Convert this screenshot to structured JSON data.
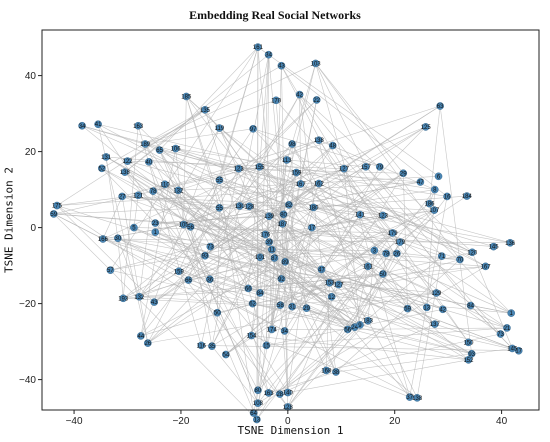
{
  "chart_data": {
    "type": "scatter",
    "title": "Embedding Real Social Networks",
    "xlabel": "TSNE Dimension 1",
    "ylabel": "TSNE Dimension 2",
    "xlim": [
      -46,
      47
    ],
    "ylim": [
      -48,
      52
    ],
    "xticks": [
      -40,
      -20,
      0,
      20,
      40
    ],
    "yticks": [
      -40,
      -20,
      0,
      20,
      40
    ],
    "grid": false,
    "node_color": "#4a86b4",
    "edge_color": "#b3b3b3",
    "nodes": [
      {
        "label": "161",
        "x": -5.6,
        "y": 47.5
      },
      {
        "label": "34",
        "x": -3.6,
        "y": 45.5
      },
      {
        "label": "43",
        "x": -1.2,
        "y": 42.6
      },
      {
        "label": "103",
        "x": 5.2,
        "y": 43.2
      },
      {
        "label": "185",
        "x": -19,
        "y": 34.5
      },
      {
        "label": "170",
        "x": -2.2,
        "y": 33.5
      },
      {
        "label": "42",
        "x": 2.2,
        "y": 35
      },
      {
        "label": "22",
        "x": 5.4,
        "y": 33.6
      },
      {
        "label": "135",
        "x": -15.5,
        "y": 31
      },
      {
        "label": "34",
        "x": -38.5,
        "y": 26.8
      },
      {
        "label": "41",
        "x": -35.5,
        "y": 27.2
      },
      {
        "label": "163",
        "x": -28,
        "y": 26.8
      },
      {
        "label": "119",
        "x": -12.8,
        "y": 26.2
      },
      {
        "label": "97",
        "x": -6.5,
        "y": 26
      },
      {
        "label": "63",
        "x": 28.5,
        "y": 32
      },
      {
        "label": "125",
        "x": 25.8,
        "y": 26.5
      },
      {
        "label": "189",
        "x": -26.7,
        "y": 22
      },
      {
        "label": "65",
        "x": -24,
        "y": 20.4
      },
      {
        "label": "106",
        "x": -21,
        "y": 20.8
      },
      {
        "label": "138",
        "x": 5.8,
        "y": 23
      },
      {
        "label": "98",
        "x": 0.8,
        "y": 22
      },
      {
        "label": "48",
        "x": 8.4,
        "y": 21.6
      },
      {
        "label": "131",
        "x": -34,
        "y": 18.6
      },
      {
        "label": "122",
        "x": -30,
        "y": 17.5
      },
      {
        "label": "52",
        "x": -34.8,
        "y": 15.6
      },
      {
        "label": "138",
        "x": -30.5,
        "y": 14.6
      },
      {
        "label": "40",
        "x": -26,
        "y": 17.3
      },
      {
        "label": "113",
        "x": -0.2,
        "y": 17.8
      },
      {
        "label": "157",
        "x": 14.6,
        "y": 16
      },
      {
        "label": "79",
        "x": 17.2,
        "y": 16
      },
      {
        "label": "127",
        "x": 10.5,
        "y": 15.5
      },
      {
        "label": "123",
        "x": -9.2,
        "y": 15.5
      },
      {
        "label": "155",
        "x": -5.3,
        "y": 16
      },
      {
        "label": "159",
        "x": 1.6,
        "y": 14.5
      },
      {
        "label": "29",
        "x": 21.6,
        "y": 14.3
      },
      {
        "label": "6",
        "x": 28.2,
        "y": 13.5
      },
      {
        "label": "110",
        "x": -23,
        "y": 11.4
      },
      {
        "label": "132",
        "x": -20.5,
        "y": 9.8
      },
      {
        "label": "78",
        "x": -25.2,
        "y": 9.6
      },
      {
        "label": "121",
        "x": -28,
        "y": 8.5
      },
      {
        "label": "27",
        "x": -31,
        "y": 8.2
      },
      {
        "label": "167",
        "x": 2.4,
        "y": 11.5
      },
      {
        "label": "162",
        "x": 5.8,
        "y": 11.6
      },
      {
        "label": "47",
        "x": 24.8,
        "y": 12
      },
      {
        "label": "184",
        "x": 33.5,
        "y": 8.3
      },
      {
        "label": "55",
        "x": -12.8,
        "y": 12.5
      },
      {
        "label": "8",
        "x": 27.5,
        "y": 10
      },
      {
        "label": "175",
        "x": -43.2,
        "y": 5.8
      },
      {
        "label": "59",
        "x": -43.8,
        "y": 3.6
      },
      {
        "label": "186",
        "x": 26.5,
        "y": 6.3
      },
      {
        "label": "16",
        "x": 29.8,
        "y": 8.2
      },
      {
        "label": "180",
        "x": 4.8,
        "y": 5.3
      },
      {
        "label": "82",
        "x": 0.2,
        "y": 6
      },
      {
        "label": "128",
        "x": -7.2,
        "y": 5.6
      },
      {
        "label": "130",
        "x": -9,
        "y": 5.7
      },
      {
        "label": "55",
        "x": -12.8,
        "y": 5.2
      },
      {
        "label": "107",
        "x": 27.4,
        "y": 4.6
      },
      {
        "label": "141",
        "x": 13.5,
        "y": 3.4
      },
      {
        "label": "123",
        "x": 17.8,
        "y": 3.2
      },
      {
        "label": "139",
        "x": -3.5,
        "y": 3
      },
      {
        "label": "80",
        "x": -0.8,
        "y": 3.5
      },
      {
        "label": "23",
        "x": -24.8,
        "y": 1.2
      },
      {
        "label": "105",
        "x": -19.5,
        "y": 0.8
      },
      {
        "label": "56",
        "x": -18.2,
        "y": 0.2
      },
      {
        "label": "17",
        "x": 4.5,
        "y": 0
      },
      {
        "label": "5",
        "x": -28.8,
        "y": 0
      },
      {
        "label": "187",
        "x": -1,
        "y": 1
      },
      {
        "label": "1",
        "x": -24.8,
        "y": -1.2
      },
      {
        "label": "176",
        "x": -4.2,
        "y": -1.8
      },
      {
        "label": "179",
        "x": 19.6,
        "y": -1.4
      },
      {
        "label": "179",
        "x": 21,
        "y": -3.8
      },
      {
        "label": "166",
        "x": -34.6,
        "y": -3
      },
      {
        "label": "30",
        "x": -31.8,
        "y": -2.8
      },
      {
        "label": "39",
        "x": -3.5,
        "y": -3.8
      },
      {
        "label": "11",
        "x": -3,
        "y": -5.8
      },
      {
        "label": "136",
        "x": 41.6,
        "y": -4
      },
      {
        "label": "145",
        "x": 38.5,
        "y": -5
      },
      {
        "label": "120",
        "x": 34.5,
        "y": -6.5
      },
      {
        "label": "3",
        "x": 16.2,
        "y": -6
      },
      {
        "label": "26",
        "x": 20.4,
        "y": -6.8
      },
      {
        "label": "78",
        "x": 18.4,
        "y": -6.8
      },
      {
        "label": "73",
        "x": -14.5,
        "y": -5
      },
      {
        "label": "93",
        "x": -15.5,
        "y": -7.4
      },
      {
        "label": "101",
        "x": -5.2,
        "y": -7.8
      },
      {
        "label": "87",
        "x": -2.5,
        "y": -8
      },
      {
        "label": "71",
        "x": 28.8,
        "y": -7.5
      },
      {
        "label": "70",
        "x": 32.2,
        "y": -8.4
      },
      {
        "label": "167",
        "x": 37,
        "y": -10.2
      },
      {
        "label": "89",
        "x": -0.5,
        "y": -9
      },
      {
        "label": "57",
        "x": -33.2,
        "y": -11.2
      },
      {
        "label": "159",
        "x": -20.4,
        "y": -11.5
      },
      {
        "label": "161",
        "x": 15,
        "y": -10.2
      },
      {
        "label": "50",
        "x": 17.8,
        "y": -12.2
      },
      {
        "label": "47",
        "x": 6.3,
        "y": -11
      },
      {
        "label": "66",
        "x": -18.6,
        "y": -13.8
      },
      {
        "label": "36",
        "x": -14.6,
        "y": -13.6
      },
      {
        "label": "92",
        "x": -1.2,
        "y": -13.5
      },
      {
        "label": "153",
        "x": 7.8,
        "y": -14.5
      },
      {
        "label": "127",
        "x": 9.5,
        "y": -15
      },
      {
        "label": "66",
        "x": -7.4,
        "y": -16
      },
      {
        "label": "84",
        "x": -5.2,
        "y": -17.2
      },
      {
        "label": "129",
        "x": 27.8,
        "y": -17.2
      },
      {
        "label": "12",
        "x": 8.2,
        "y": -18.2
      },
      {
        "label": "193",
        "x": -30.8,
        "y": -18.6
      },
      {
        "label": "132",
        "x": -27.8,
        "y": -18.2
      },
      {
        "label": "43",
        "x": -25,
        "y": -19.6
      },
      {
        "label": "62",
        "x": -6.6,
        "y": -20
      },
      {
        "label": "58",
        "x": -1.4,
        "y": -20.4
      },
      {
        "label": "31",
        "x": 0.8,
        "y": -20.8
      },
      {
        "label": "29",
        "x": 3.5,
        "y": -21.2
      },
      {
        "label": "59",
        "x": 22.4,
        "y": -21.3
      },
      {
        "label": "13",
        "x": 26,
        "y": -21
      },
      {
        "label": "42",
        "x": 29,
        "y": -21.5
      },
      {
        "label": "84",
        "x": 34.2,
        "y": -20.5
      },
      {
        "label": "50",
        "x": -13.2,
        "y": -22.4
      },
      {
        "label": "1",
        "x": 41.8,
        "y": -22.5
      },
      {
        "label": "183",
        "x": 15,
        "y": -24.5
      },
      {
        "label": "137",
        "x": 27.5,
        "y": -25.4
      },
      {
        "label": "24",
        "x": 12.5,
        "y": -26.2
      },
      {
        "label": "9",
        "x": 13.5,
        "y": -25.6
      },
      {
        "label": "21",
        "x": 41,
        "y": -26.4
      },
      {
        "label": "73",
        "x": 39.8,
        "y": -28
      },
      {
        "label": "56",
        "x": 11.2,
        "y": -26.8
      },
      {
        "label": "174",
        "x": -3,
        "y": -26.8
      },
      {
        "label": "34",
        "x": -0.6,
        "y": -27.2
      },
      {
        "label": "154",
        "x": -6.8,
        "y": -28.4
      },
      {
        "label": "44",
        "x": -27.5,
        "y": -28.5
      },
      {
        "label": "150",
        "x": 33.8,
        "y": -30.2
      },
      {
        "label": "26",
        "x": -26.2,
        "y": -30.4
      },
      {
        "label": "15",
        "x": -4,
        "y": -31
      },
      {
        "label": "116",
        "x": -16.2,
        "y": -31
      },
      {
        "label": "35",
        "x": -14.2,
        "y": -31.2
      },
      {
        "label": "54",
        "x": -11.6,
        "y": -33.4
      },
      {
        "label": "17",
        "x": 43.2,
        "y": -32.4
      },
      {
        "label": "145",
        "x": 42,
        "y": -31.8
      },
      {
        "label": "93",
        "x": 34.4,
        "y": -33.2
      },
      {
        "label": "152",
        "x": 33.8,
        "y": -34.8
      },
      {
        "label": "168",
        "x": 7.2,
        "y": -37.6
      },
      {
        "label": "38",
        "x": 9,
        "y": -38
      },
      {
        "label": "80",
        "x": -5.6,
        "y": -42.8
      },
      {
        "label": "163",
        "x": -3.6,
        "y": -43.5
      },
      {
        "label": "28",
        "x": -1.5,
        "y": -43.8
      },
      {
        "label": "140",
        "x": 0,
        "y": -43.4
      },
      {
        "label": "37",
        "x": 22.8,
        "y": -44.6
      },
      {
        "label": "138",
        "x": 24.2,
        "y": -44.8
      },
      {
        "label": "108",
        "x": -5.6,
        "y": -46.2
      },
      {
        "label": "128",
        "x": 0,
        "y": -47.2
      },
      {
        "label": "64",
        "x": -6.4,
        "y": -48.8
      },
      {
        "label": "13",
        "x": -5.8,
        "y": -50.5
      }
    ]
  }
}
